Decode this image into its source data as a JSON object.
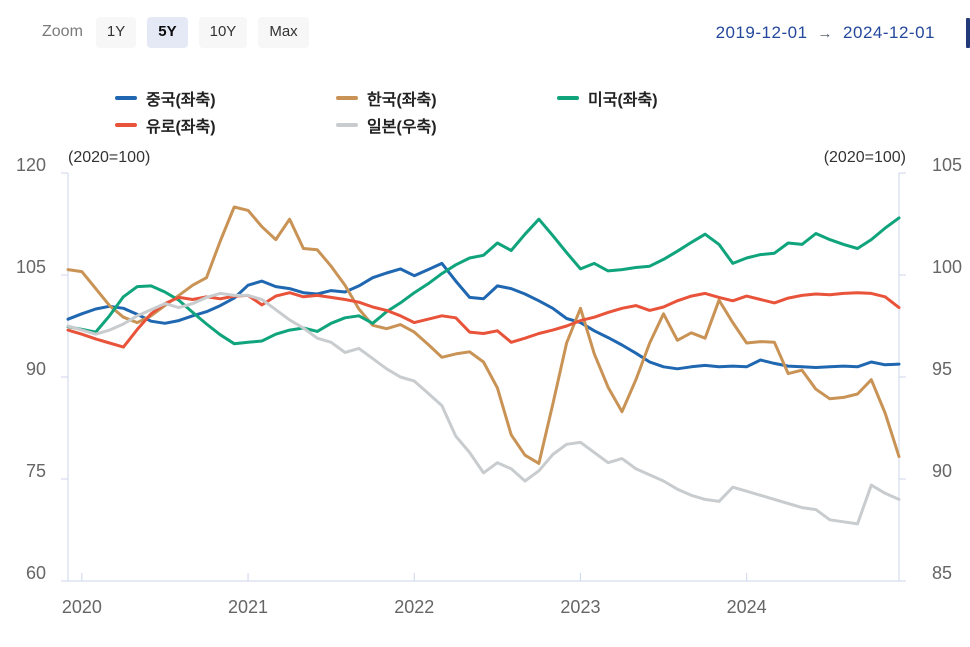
{
  "toolbar": {
    "zoom_label": "Zoom",
    "buttons": [
      {
        "label": "1Y",
        "selected": false
      },
      {
        "label": "5Y",
        "selected": true
      },
      {
        "label": "10Y",
        "selected": false
      },
      {
        "label": "Max",
        "selected": false
      }
    ],
    "date_from": "2019-12-01",
    "arrow": "→",
    "date_to": "2024-12-01"
  },
  "legend": [
    {
      "label": "중국(좌축)",
      "color": "#1f67b1"
    },
    {
      "label": "한국(좌축)",
      "color": "#c99356"
    },
    {
      "label": "미국(좌축)",
      "color": "#0fa47c"
    },
    {
      "label": "유로(좌축)",
      "color": "#e8533a"
    },
    {
      "label": "일본(우축)",
      "color": "#c9ccce"
    }
  ],
  "colors": {
    "axis_line": "#ccd6eb",
    "axis_text": "#666666",
    "corner_text": "#333333",
    "date_text": "#24489c",
    "selected_button_bg": "#e5e9f5"
  },
  "chart_data": {
    "type": "line",
    "title": "",
    "x_axis": {
      "start": "2019-12",
      "end": "2024-12",
      "interval": "monthly",
      "tick_labels": [
        "2020",
        "2021",
        "2022",
        "2023",
        "2024"
      ]
    },
    "left_axis": {
      "label": "(2020=100)",
      "ticks": [
        120,
        105,
        90,
        75,
        60
      ],
      "range": [
        60,
        120
      ]
    },
    "right_axis": {
      "label": "(2020=100)",
      "ticks": [
        105,
        100,
        95,
        90,
        85
      ],
      "range": [
        85,
        105
      ]
    },
    "series": [
      {
        "key": "china",
        "name": "중국(좌축)",
        "axis": "left",
        "color": "#1f67b1",
        "values": [
          98.5,
          99.3,
          100.0,
          100.4,
          100.1,
          99.2,
          98.2,
          97.9,
          98.3,
          99.0,
          99.6,
          100.5,
          101.6,
          103.5,
          104.1,
          103.3,
          103.0,
          102.4,
          102.2,
          102.7,
          102.5,
          103.4,
          104.6,
          105.3,
          105.9,
          104.9,
          105.8,
          106.7,
          104.1,
          101.7,
          101.5,
          103.4,
          103.0,
          102.2,
          101.2,
          100.1,
          98.6,
          98.0,
          96.8,
          95.8,
          94.7,
          93.5,
          92.2,
          91.5,
          91.2,
          91.5,
          91.7,
          91.5,
          91.6,
          91.5,
          92.5,
          92.0,
          91.6,
          91.5,
          91.4,
          91.5,
          91.6,
          91.5,
          92.2,
          91.8,
          91.9
        ]
      },
      {
        "key": "korea",
        "name": "한국(좌축)",
        "axis": "left",
        "color": "#c99356",
        "values": [
          105.8,
          105.5,
          103.0,
          100.5,
          98.8,
          98.0,
          99.0,
          100.5,
          102.0,
          103.5,
          104.6,
          110.0,
          115.0,
          114.5,
          112.1,
          110.2,
          113.2,
          108.9,
          108.7,
          106.3,
          103.5,
          100.0,
          97.6,
          97.1,
          97.7,
          96.6,
          94.8,
          92.9,
          93.4,
          93.7,
          92.2,
          88.4,
          81.5,
          78.5,
          77.3,
          86.0,
          95.0,
          100.1,
          93.4,
          88.5,
          84.9,
          89.6,
          95.0,
          99.3,
          95.4,
          96.5,
          95.7,
          101.3,
          98.0,
          95.0,
          95.2,
          95.1,
          90.5,
          91.0,
          88.2,
          86.8,
          87.0,
          87.5,
          89.6,
          84.7,
          78.3
        ]
      },
      {
        "key": "us",
        "name": "미국(좌축)",
        "axis": "left",
        "color": "#0fa47c",
        "values": [
          97.4,
          97.0,
          96.6,
          99.0,
          101.8,
          103.3,
          103.4,
          102.5,
          101.3,
          99.5,
          97.8,
          96.2,
          94.9,
          95.1,
          95.3,
          96.3,
          96.9,
          97.2,
          96.7,
          97.9,
          98.7,
          99.0,
          97.9,
          99.6,
          100.9,
          102.4,
          103.7,
          105.2,
          106.5,
          107.5,
          107.9,
          109.7,
          108.6,
          111.0,
          113.2,
          110.8,
          108.3,
          105.9,
          106.7,
          105.6,
          105.8,
          106.1,
          106.3,
          107.3,
          108.5,
          109.8,
          111.0,
          109.5,
          106.7,
          107.5,
          108.0,
          108.2,
          109.7,
          109.5,
          111.1,
          110.2,
          109.5,
          108.9,
          110.2,
          111.9,
          113.4
        ]
      },
      {
        "key": "euro",
        "name": "유로(좌축)",
        "axis": "left",
        "color": "#e8533a",
        "values": [
          96.9,
          96.3,
          95.6,
          95.0,
          94.4,
          97.0,
          99.3,
          100.8,
          101.7,
          101.4,
          101.8,
          101.5,
          101.9,
          102.0,
          100.6,
          101.9,
          102.4,
          101.8,
          102.0,
          101.7,
          101.4,
          101.0,
          100.3,
          99.8,
          99.0,
          98.0,
          98.5,
          99.0,
          98.7,
          96.6,
          96.4,
          96.8,
          95.1,
          95.7,
          96.4,
          96.9,
          97.5,
          98.3,
          98.8,
          99.5,
          100.1,
          100.5,
          99.8,
          100.3,
          101.2,
          101.9,
          102.3,
          101.7,
          101.2,
          101.9,
          101.4,
          100.9,
          101.6,
          102.0,
          102.2,
          102.1,
          102.3,
          102.4,
          102.3,
          101.8,
          100.2
        ]
      },
      {
        "key": "japan",
        "name": "일본(우축)",
        "axis": "right",
        "color": "#c9ccce",
        "values": [
          97.5,
          97.3,
          97.1,
          97.3,
          97.6,
          98.0,
          98.3,
          98.6,
          98.4,
          98.6,
          98.9,
          99.1,
          99.0,
          99.0,
          98.8,
          98.3,
          97.8,
          97.4,
          96.9,
          96.7,
          96.2,
          96.4,
          95.9,
          95.4,
          95.0,
          94.8,
          94.2,
          93.6,
          92.1,
          91.3,
          90.3,
          90.8,
          90.5,
          89.9,
          90.4,
          91.2,
          91.7,
          91.8,
          91.3,
          90.8,
          91.0,
          90.5,
          90.2,
          89.9,
          89.5,
          89.2,
          89.0,
          88.9,
          89.6,
          89.4,
          89.2,
          89.0,
          88.8,
          88.6,
          88.5,
          88.0,
          87.9,
          87.8,
          89.7,
          89.3,
          89.0
        ]
      }
    ]
  }
}
